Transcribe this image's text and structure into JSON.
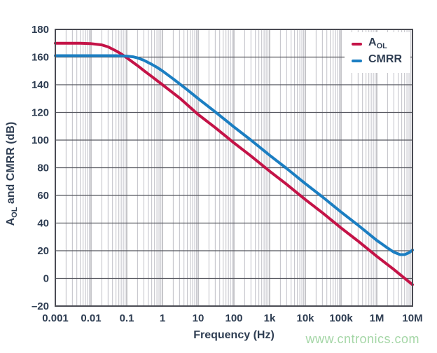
{
  "watermark": "www.cntronics.com",
  "chart_data": {
    "type": "line",
    "title": "",
    "xlabel": "Frequency (Hz)",
    "ylabel": {
      "prefix": "A",
      "sub": "OL",
      "suffix": " and CMRR (dB)"
    },
    "x_scale": "log",
    "xlim": [
      0.001,
      10000000
    ],
    "ylim": [
      -20,
      180
    ],
    "grid": true,
    "legend_position": "top-right",
    "x_ticks": [
      {
        "value": 0.001,
        "label": "0.001"
      },
      {
        "value": 0.01,
        "label": "0.01"
      },
      {
        "value": 0.1,
        "label": "0.1"
      },
      {
        "value": 1,
        "label": "1"
      },
      {
        "value": 10,
        "label": "10"
      },
      {
        "value": 100,
        "label": "100"
      },
      {
        "value": 1000,
        "label": "1k"
      },
      {
        "value": 10000,
        "label": "10k"
      },
      {
        "value": 100000,
        "label": "100k"
      },
      {
        "value": 1000000,
        "label": "1M"
      },
      {
        "value": 10000000,
        "label": "10M"
      }
    ],
    "y_ticks": [
      {
        "value": 180,
        "label": "180"
      },
      {
        "value": 160,
        "label": "160"
      },
      {
        "value": 140,
        "label": "140"
      },
      {
        "value": 120,
        "label": "120"
      },
      {
        "value": 100,
        "label": "100"
      },
      {
        "value": 80,
        "label": "80"
      },
      {
        "value": 60,
        "label": "60"
      },
      {
        "value": 40,
        "label": "40"
      },
      {
        "value": 20,
        "label": "20"
      },
      {
        "value": 0,
        "label": "0"
      },
      {
        "value": -20,
        "label": "–20"
      }
    ],
    "series": [
      {
        "name": "AOL",
        "legend": {
          "main": "A",
          "sub": "OL"
        },
        "color": "#c41347",
        "points": [
          [
            0.001,
            170
          ],
          [
            0.005,
            170
          ],
          [
            0.01,
            169.7
          ],
          [
            0.02,
            168.8
          ],
          [
            0.03,
            167.4
          ],
          [
            0.05,
            164.5
          ],
          [
            0.07,
            162.3
          ],
          [
            0.1,
            159.5
          ],
          [
            0.2,
            153.8
          ],
          [
            0.3,
            150.3
          ],
          [
            0.5,
            146.0
          ],
          [
            1,
            140.0
          ],
          [
            3,
            130.5
          ],
          [
            10,
            118.5
          ],
          [
            30,
            109.0
          ],
          [
            100,
            98.0
          ],
          [
            300,
            88.5
          ],
          [
            1000,
            77.5
          ],
          [
            3000,
            68.0
          ],
          [
            10000,
            57.0
          ],
          [
            30000,
            47.5
          ],
          [
            100000,
            36.5
          ],
          [
            300000,
            27.0
          ],
          [
            1000000,
            16.0
          ],
          [
            3000000,
            6.5
          ],
          [
            10000000,
            -4.5
          ]
        ]
      },
      {
        "name": "CMRR",
        "legend": {
          "main": "CMRR",
          "sub": ""
        },
        "color": "#1b7ec2",
        "points": [
          [
            0.001,
            161
          ],
          [
            0.05,
            161
          ],
          [
            0.1,
            160.7
          ],
          [
            0.15,
            160.2
          ],
          [
            0.2,
            159.4
          ],
          [
            0.3,
            157.7
          ],
          [
            0.5,
            154.8
          ],
          [
            0.7,
            152.6
          ],
          [
            1,
            150.0
          ],
          [
            2,
            144.2
          ],
          [
            3,
            140.7
          ],
          [
            5,
            136.3
          ],
          [
            10,
            130.0
          ],
          [
            30,
            120.4
          ],
          [
            100,
            109.5
          ],
          [
            300,
            100.0
          ],
          [
            1000,
            89.0
          ],
          [
            3000,
            79.5
          ],
          [
            10000,
            68.5
          ],
          [
            30000,
            59.0
          ],
          [
            100000,
            48.0
          ],
          [
            300000,
            38.5
          ],
          [
            1000000,
            27.5
          ],
          [
            1500000,
            24.3
          ],
          [
            2000000,
            22.0
          ],
          [
            3000000,
            19.0
          ],
          [
            4500000,
            17.2
          ],
          [
            6000000,
            17.2
          ],
          [
            8000000,
            18.6
          ],
          [
            10000000,
            20.5
          ]
        ]
      }
    ],
    "colors": {
      "grid_minor": "#bfbfc6",
      "grid_major_vertical": "#8c8c94",
      "grid_major_horizontal": "#55565e",
      "frame": "#4b4c54",
      "tick_text": "#2e3d52",
      "watermark": "#a4d6a6",
      "legend_background": "#ffffff"
    }
  }
}
